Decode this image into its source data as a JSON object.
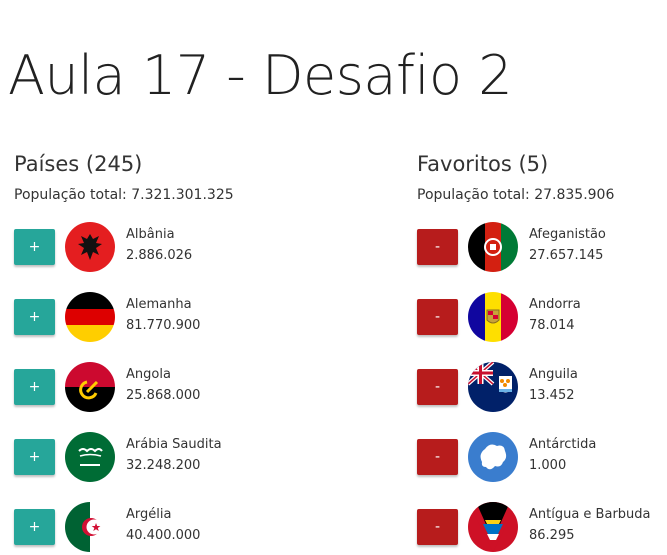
{
  "title": "Aula 17 - Desafio 2",
  "countries": {
    "heading": "Países (245)",
    "total": "População total: 7.321.301.325",
    "button_label": "+",
    "items": [
      {
        "name": "Albânia",
        "population": "2.886.026",
        "flag": "albania-flag-icon"
      },
      {
        "name": "Alemanha",
        "population": "81.770.900",
        "flag": "germany-flag-icon"
      },
      {
        "name": "Angola",
        "population": "25.868.000",
        "flag": "angola-flag-icon"
      },
      {
        "name": "Arábia Saudita",
        "population": "32.248.200",
        "flag": "saudi-arabia-flag-icon"
      },
      {
        "name": "Argélia",
        "population": "40.400.000",
        "flag": "algeria-flag-icon"
      }
    ]
  },
  "favorites": {
    "heading": "Favoritos (5)",
    "total": "População total: 27.835.906",
    "button_label": "-",
    "items": [
      {
        "name": "Afeganistão",
        "population": "27.657.145",
        "flag": "afghanistan-flag-icon"
      },
      {
        "name": "Andorra",
        "population": "78.014",
        "flag": "andorra-flag-icon"
      },
      {
        "name": "Anguila",
        "population": "13.452",
        "flag": "anguilla-flag-icon"
      },
      {
        "name": "Antárctida",
        "population": "1.000",
        "flag": "antarctica-flag-icon"
      },
      {
        "name": "Antígua e Barbuda",
        "population": "86.295",
        "flag": "antigua-barbuda-flag-icon"
      }
    ]
  },
  "colors": {
    "add_button": "#26a69a",
    "remove_button": "#b71c1c"
  }
}
